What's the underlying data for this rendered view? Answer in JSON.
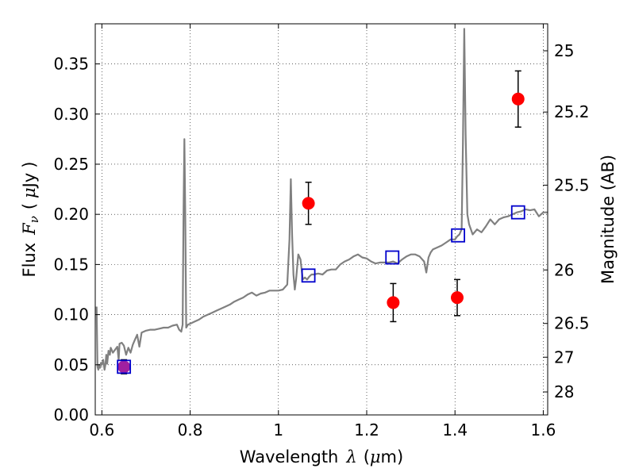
{
  "chart_data": {
    "type": "line",
    "xlabel": {
      "prefix": "Wavelength",
      "symbol": "λ",
      "unit_open": "(",
      "unit_mu": "μ",
      "unit_rest": "m)"
    },
    "ylabel": {
      "prefix": "Flux",
      "symbol": "F",
      "subscript": "ν",
      "unit_open": "(",
      "unit_mu": "μ",
      "unit_rest": "Jy",
      "unit_close": ")"
    },
    "y2label": "Magnitude (AB)",
    "xlim": [
      0.585,
      1.61
    ],
    "ylim": [
      0.0,
      0.39
    ],
    "xticks": [
      {
        "value": 0.6,
        "label": "0.6"
      },
      {
        "value": 0.8,
        "label": "0.8"
      },
      {
        "value": 1.0,
        "label": "1"
      },
      {
        "value": 1.2,
        "label": "1.2"
      },
      {
        "value": 1.4,
        "label": "1.4"
      },
      {
        "value": 1.6,
        "label": "1.6"
      }
    ],
    "yticks": [
      {
        "value": 0.0,
        "label": "0.00"
      },
      {
        "value": 0.05,
        "label": "0.05"
      },
      {
        "value": 0.1,
        "label": "0.10"
      },
      {
        "value": 0.15,
        "label": "0.15"
      },
      {
        "value": 0.2,
        "label": "0.20"
      },
      {
        "value": 0.25,
        "label": "0.25"
      },
      {
        "value": 0.3,
        "label": "0.30"
      },
      {
        "value": 0.35,
        "label": "0.35"
      }
    ],
    "y2ticks": [
      {
        "value": 25,
        "label": "25"
      },
      {
        "value": 25.2,
        "label": "25.2"
      },
      {
        "value": 25.5,
        "label": "25.5"
      },
      {
        "value": 26,
        "label": "26"
      },
      {
        "value": 26.5,
        "label": "26.5"
      },
      {
        "value": 27,
        "label": "27"
      },
      {
        "value": 28,
        "label": "28"
      }
    ],
    "y2_scale": "AB magnitude of right-axis ticks equals flux on left axis",
    "grid": true,
    "colors": {
      "spectrum": "#808080",
      "observed": "#ff0000",
      "model": "#0000cc",
      "errorbar": "#000000",
      "blend": "#a020a0"
    },
    "series": [
      {
        "kind": "spectrum",
        "x": [
          0.588,
          0.59,
          0.592,
          0.594,
          0.596,
          0.598,
          0.6,
          0.603,
          0.606,
          0.608,
          0.61,
          0.612,
          0.615,
          0.618,
          0.62,
          0.625,
          0.63,
          0.635,
          0.638,
          0.64,
          0.645,
          0.65,
          0.655,
          0.66,
          0.665,
          0.67,
          0.675,
          0.68,
          0.685,
          0.69,
          0.7,
          0.71,
          0.72,
          0.73,
          0.74,
          0.75,
          0.76,
          0.77,
          0.775,
          0.78,
          0.783,
          0.785,
          0.787,
          0.789,
          0.791,
          0.795,
          0.8,
          0.81,
          0.82,
          0.83,
          0.84,
          0.85,
          0.86,
          0.87,
          0.88,
          0.89,
          0.9,
          0.91,
          0.92,
          0.93,
          0.94,
          0.95,
          0.96,
          0.97,
          0.98,
          0.99,
          1.0,
          1.01,
          1.02,
          1.025,
          1.028,
          1.031,
          1.034,
          1.037,
          1.04,
          1.045,
          1.05,
          1.055,
          1.06,
          1.065,
          1.07,
          1.075,
          1.08,
          1.09,
          1.1,
          1.11,
          1.12,
          1.13,
          1.14,
          1.15,
          1.16,
          1.17,
          1.18,
          1.19,
          1.2,
          1.21,
          1.22,
          1.23,
          1.24,
          1.25,
          1.26,
          1.27,
          1.28,
          1.29,
          1.3,
          1.31,
          1.32,
          1.33,
          1.335,
          1.34,
          1.345,
          1.35,
          1.36,
          1.37,
          1.38,
          1.39,
          1.4,
          1.405,
          1.41,
          1.415,
          1.418,
          1.421,
          1.424,
          1.428,
          1.432,
          1.44,
          1.45,
          1.46,
          1.47,
          1.48,
          1.49,
          1.5,
          1.51,
          1.52,
          1.53,
          1.54,
          1.55,
          1.56,
          1.57,
          1.58,
          1.59,
          1.6,
          1.61
        ],
        "y": [
          0.108,
          0.048,
          0.045,
          0.05,
          0.047,
          0.052,
          0.05,
          0.055,
          0.045,
          0.05,
          0.06,
          0.051,
          0.064,
          0.06,
          0.067,
          0.062,
          0.065,
          0.068,
          0.055,
          0.071,
          0.072,
          0.069,
          0.06,
          0.067,
          0.062,
          0.07,
          0.075,
          0.08,
          0.068,
          0.082,
          0.084,
          0.085,
          0.085,
          0.086,
          0.087,
          0.087,
          0.089,
          0.09,
          0.085,
          0.083,
          0.09,
          0.2,
          0.275,
          0.2,
          0.087,
          0.09,
          0.091,
          0.093,
          0.095,
          0.098,
          0.1,
          0.102,
          0.104,
          0.106,
          0.108,
          0.11,
          0.113,
          0.115,
          0.117,
          0.12,
          0.122,
          0.119,
          0.121,
          0.122,
          0.124,
          0.124,
          0.124,
          0.125,
          0.13,
          0.175,
          0.235,
          0.18,
          0.14,
          0.125,
          0.135,
          0.16,
          0.155,
          0.135,
          0.137,
          0.135,
          0.138,
          0.14,
          0.14,
          0.141,
          0.14,
          0.144,
          0.145,
          0.145,
          0.15,
          0.153,
          0.155,
          0.158,
          0.16,
          0.157,
          0.156,
          0.153,
          0.151,
          0.152,
          0.152,
          0.152,
          0.153,
          0.151,
          0.155,
          0.158,
          0.16,
          0.16,
          0.158,
          0.153,
          0.142,
          0.157,
          0.162,
          0.165,
          0.167,
          0.169,
          0.172,
          0.175,
          0.175,
          0.178,
          0.18,
          0.185,
          0.27,
          0.385,
          0.28,
          0.2,
          0.19,
          0.18,
          0.185,
          0.182,
          0.188,
          0.195,
          0.19,
          0.195,
          0.197,
          0.198,
          0.2,
          0.202,
          0.203,
          0.205,
          0.204,
          0.205,
          0.198,
          0.202,
          0.202
        ]
      },
      {
        "kind": "observed",
        "points": [
          {
            "x": 0.65,
            "y": 0.048,
            "err": 0.007
          },
          {
            "x": 1.068,
            "y": 0.211,
            "err": 0.021
          },
          {
            "x": 1.26,
            "y": 0.112,
            "err": 0.019
          },
          {
            "x": 1.405,
            "y": 0.117,
            "err": 0.018
          },
          {
            "x": 1.543,
            "y": 0.315,
            "err": 0.028
          }
        ]
      },
      {
        "kind": "model",
        "points": [
          {
            "x": 0.65,
            "y": 0.048
          },
          {
            "x": 1.068,
            "y": 0.139
          },
          {
            "x": 1.258,
            "y": 0.157
          },
          {
            "x": 1.407,
            "y": 0.179
          },
          {
            "x": 1.543,
            "y": 0.202
          }
        ]
      }
    ]
  }
}
